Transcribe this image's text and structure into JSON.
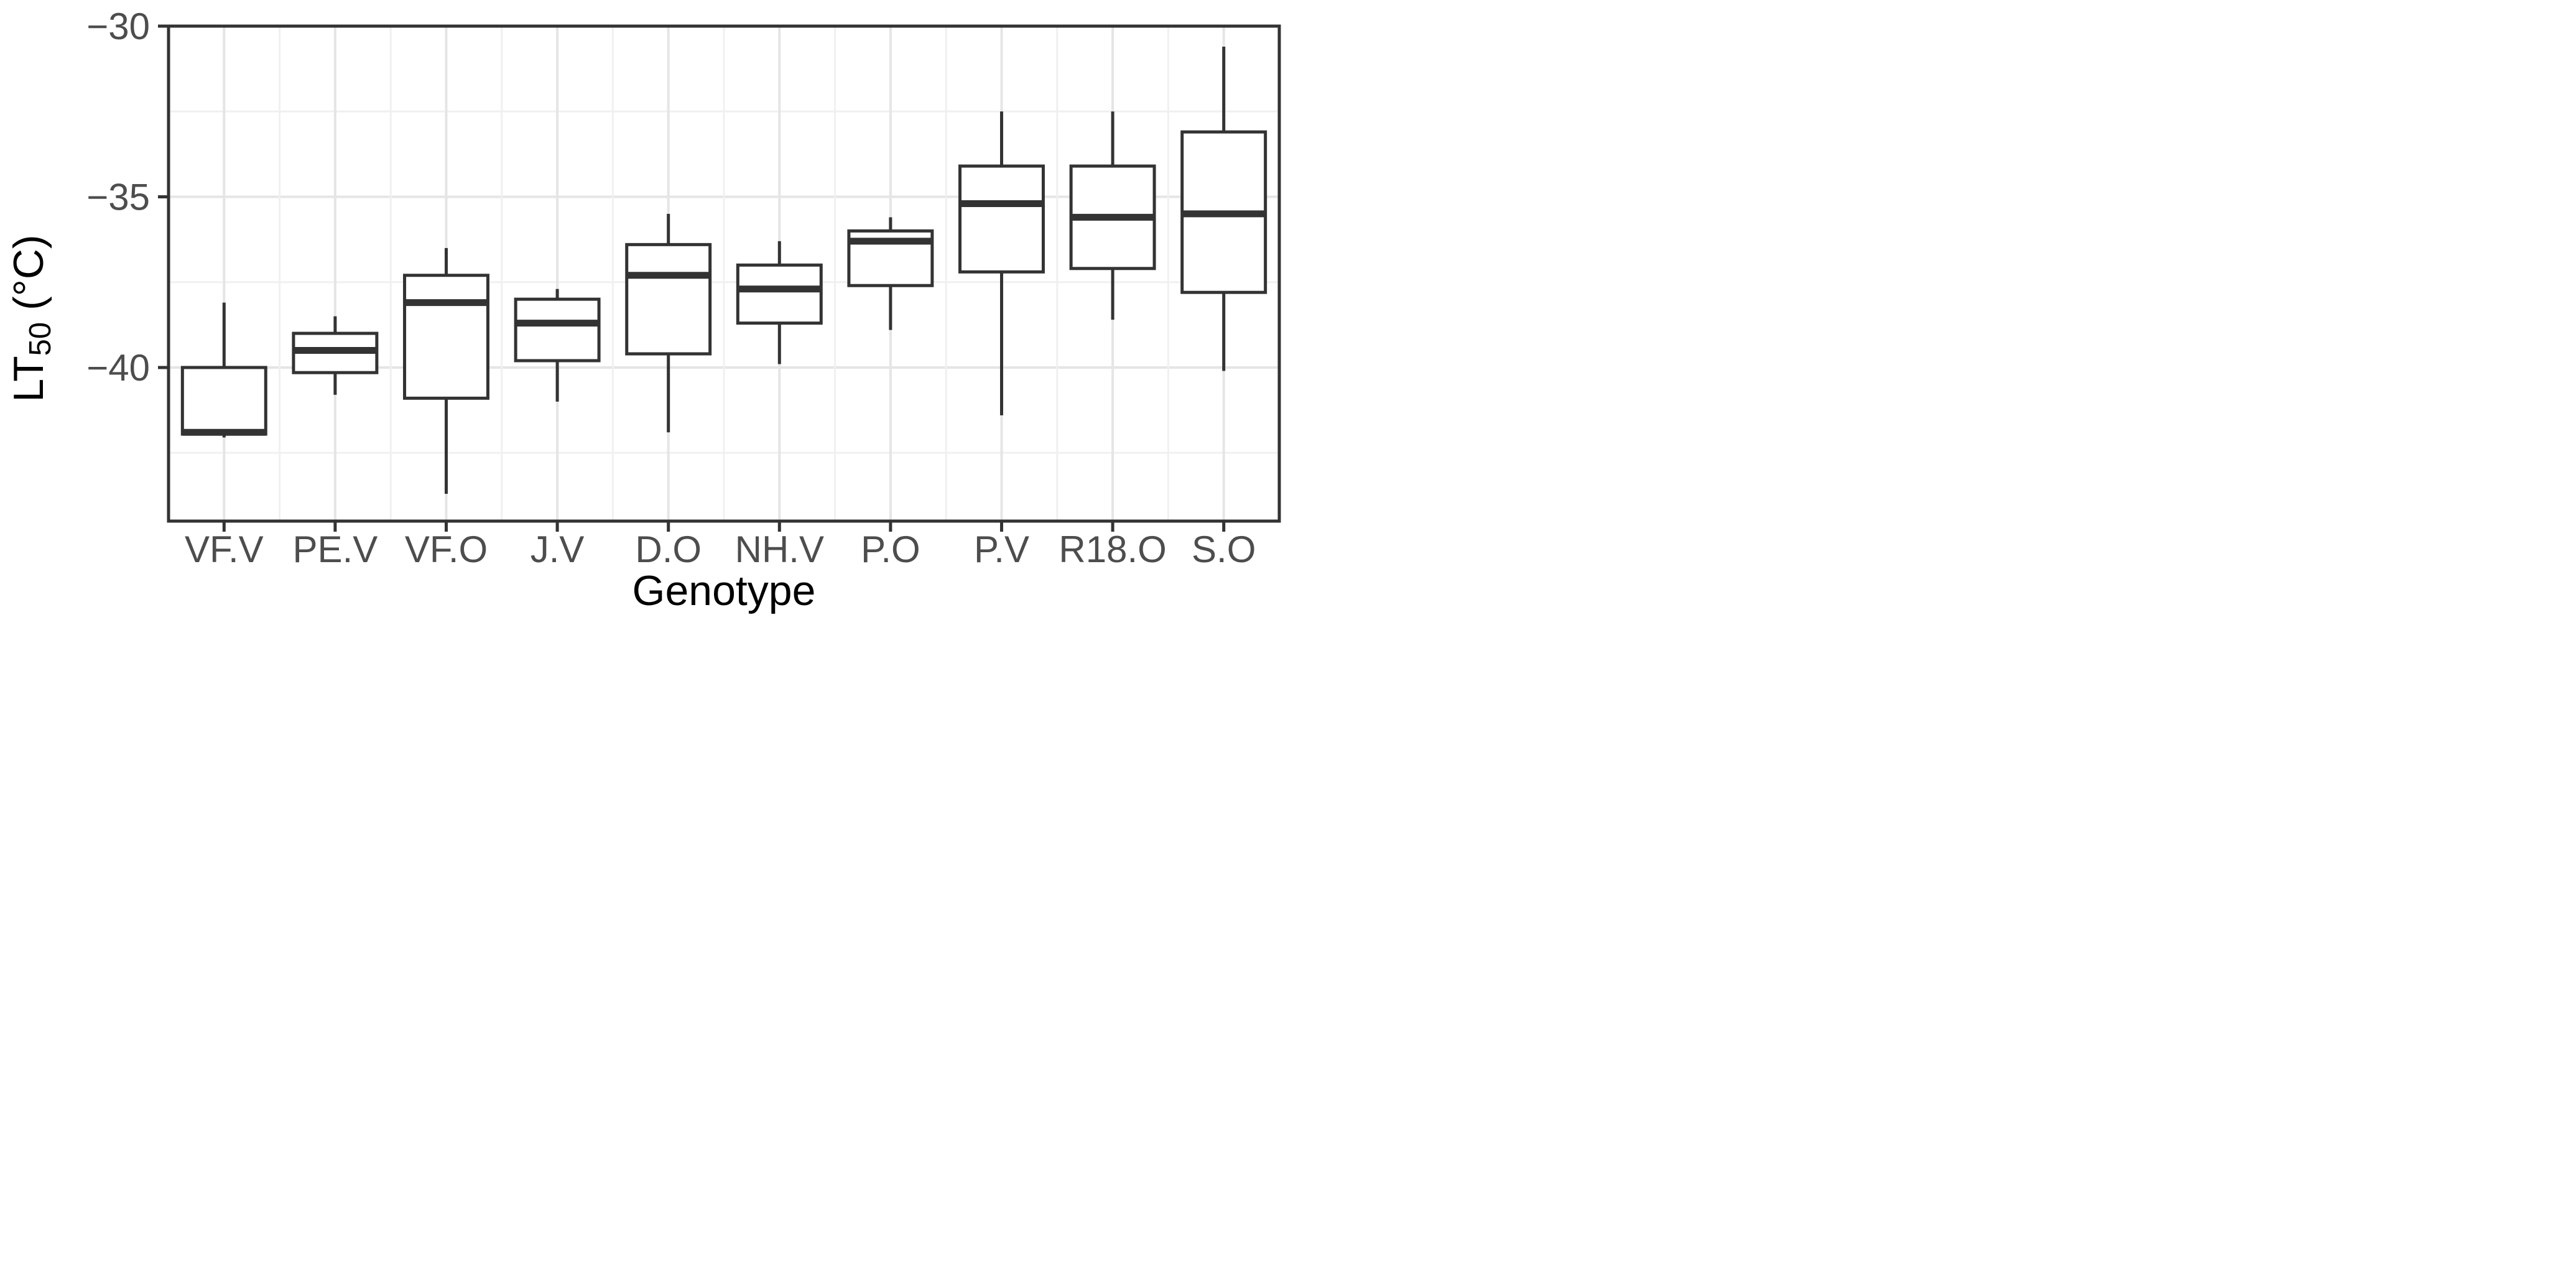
{
  "chart_data": {
    "type": "boxplot",
    "title": "",
    "xlabel": "Genotype",
    "ylabel": {
      "main": "LT",
      "subscript": "50",
      "unit": " (°C)"
    },
    "categories": [
      "VF.V",
      "PE.V",
      "VF.O",
      "J.V",
      "D.O",
      "NH.V",
      "P.O",
      "P.V",
      "R18.O",
      "S.O"
    ],
    "series": [
      {
        "label": "VF.V",
        "whisker_low": -42.05,
        "q1": -41.95,
        "median": -41.9,
        "q3": -40.0,
        "whisker_high": -38.1
      },
      {
        "label": "PE.V",
        "whisker_low": -40.8,
        "q1": -40.15,
        "median": -39.5,
        "q3": -39.0,
        "whisker_high": -38.5
      },
      {
        "label": "VF.O",
        "whisker_low": -43.7,
        "q1": -40.9,
        "median": -38.1,
        "q3": -37.3,
        "whisker_high": -36.5
      },
      {
        "label": "J.V",
        "whisker_low": -41.0,
        "q1": -39.8,
        "median": -38.7,
        "q3": -38.0,
        "whisker_high": -37.7
      },
      {
        "label": "D.O",
        "whisker_low": -41.9,
        "q1": -39.6,
        "median": -37.3,
        "q3": -36.4,
        "whisker_high": -35.5
      },
      {
        "label": "NH.V",
        "whisker_low": -39.9,
        "q1": -38.7,
        "median": -37.7,
        "q3": -37.0,
        "whisker_high": -36.3
      },
      {
        "label": "P.O",
        "whisker_low": -38.9,
        "q1": -37.6,
        "median": -36.3,
        "q3": -36.0,
        "whisker_high": -35.6
      },
      {
        "label": "P.V",
        "whisker_low": -41.4,
        "q1": -37.2,
        "median": -35.2,
        "q3": -34.1,
        "whisker_high": -32.5
      },
      {
        "label": "R18.O",
        "whisker_low": -38.6,
        "q1": -37.1,
        "median": -35.6,
        "q3": -34.1,
        "whisker_high": -32.5
      },
      {
        "label": "S.O",
        "whisker_low": -40.1,
        "q1": -37.8,
        "median": -35.5,
        "q3": -33.1,
        "whisker_high": -30.6
      }
    ],
    "ylim": [
      -44.5,
      -30
    ],
    "yticks": [
      {
        "value": -30,
        "label": "−30"
      },
      {
        "value": -35,
        "label": "−35"
      },
      {
        "value": -40,
        "label": "−40"
      }
    ],
    "yminor": [
      -32.5,
      -37.5,
      -42.5
    ],
    "grid": "on",
    "legend": "none",
    "box_width_fraction": 0.75
  },
  "colors": {
    "box_stroke": "#333333",
    "box_fill": "#ffffff",
    "panel_border": "#333333",
    "tick": "#333333",
    "grid_major": "#e5e5e5",
    "grid_minor": "#f0f0f0",
    "tick_label": "#4d4d4d",
    "axis_title": "#000000",
    "background": "#ffffff"
  }
}
